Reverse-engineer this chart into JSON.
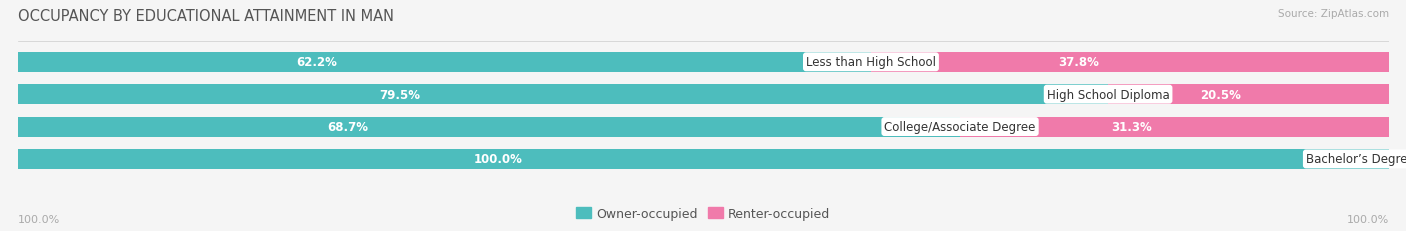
{
  "title": "OCCUPANCY BY EDUCATIONAL ATTAINMENT IN MAN",
  "source": "Source: ZipAtlas.com",
  "categories": [
    "Less than High School",
    "High School Diploma",
    "College/Associate Degree",
    "Bachelor’s Degree or higher"
  ],
  "owner_pct": [
    62.2,
    79.5,
    68.7,
    100.0
  ],
  "renter_pct": [
    37.8,
    20.5,
    31.3,
    0.0
  ],
  "owner_color": "#4dbdbd",
  "renter_color": "#f07aaa",
  "renter_color_light": "#f9bcd5",
  "bg_color": "#f5f5f5",
  "bar_bg_color": "#e8e8e8",
  "title_fontsize": 10.5,
  "label_fontsize": 8.5,
  "legend_fontsize": 9,
  "axis_label_fontsize": 8,
  "bar_height": 0.62,
  "x_left_label": "100.0%",
  "x_right_label": "100.0%"
}
